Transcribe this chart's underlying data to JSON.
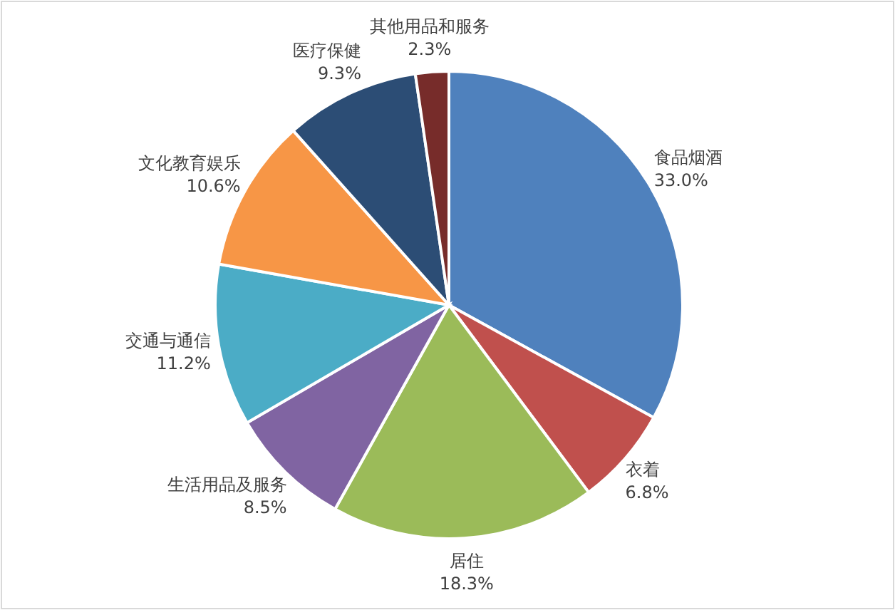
{
  "chart_data": {
    "type": "pie",
    "categories": [
      "食品烟酒",
      "衣着",
      "居住",
      "生活用品及服务",
      "交通与通信",
      "文化教育娱乐",
      "医疗保健",
      "其他用品和服务"
    ],
    "values": [
      33.0,
      6.8,
      18.3,
      8.5,
      11.2,
      10.6,
      9.3,
      2.3
    ],
    "colors": [
      "#4f81bd",
      "#c0504d",
      "#9bbb59",
      "#8064a2",
      "#4bacc6",
      "#f79646",
      "#2c4d75",
      "#772c2a"
    ],
    "value_labels": [
      "33.0%",
      "6.8%",
      "18.3%",
      "8.5%",
      "11.2%",
      "10.6%",
      "9.3%",
      "2.3%"
    ],
    "legend": false
  }
}
